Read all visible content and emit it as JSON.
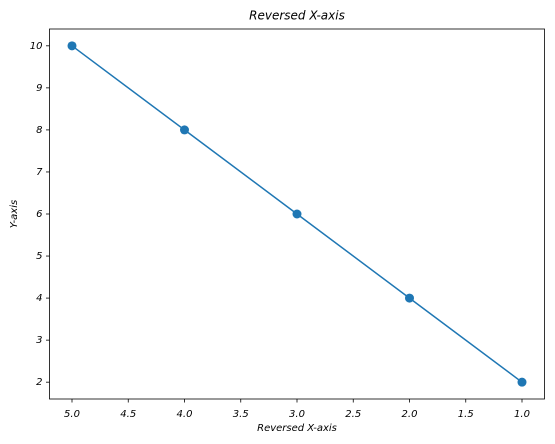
{
  "chart_data": {
    "type": "line",
    "title": "Reversed X-axis",
    "xlabel": "Reversed X-axis",
    "ylabel": "Y-axis",
    "x": [
      1,
      2,
      3,
      4,
      5
    ],
    "series": [
      {
        "color": "#1f77b4",
        "values": [
          2,
          4,
          6,
          8,
          10
        ]
      }
    ],
    "markers": true,
    "xlim": [
      5.2,
      0.8
    ],
    "xticks": [
      {
        "value": 5,
        "label": "5.0"
      },
      4.5,
      {
        "value": 4,
        "label": "4.0"
      },
      3.5,
      {
        "value": 3,
        "label": "3.0"
      },
      2.5,
      {
        "value": 2,
        "label": "2.0"
      },
      1.5,
      {
        "value": 1,
        "label": "1.0"
      }
    ],
    "ylim": [
      1.6,
      10.4
    ],
    "yticks": [
      2,
      3,
      4,
      5,
      6,
      7,
      8,
      9,
      10
    ],
    "grid": false
  }
}
